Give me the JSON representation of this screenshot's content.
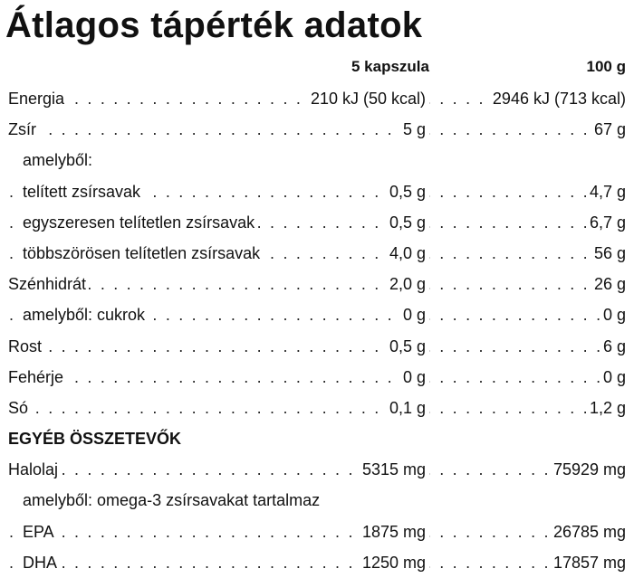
{
  "title": "Átlagos tápérték adatok",
  "columns": {
    "col1": "5 kapszula",
    "col2": "100 g"
  },
  "rows": [
    {
      "label": "Energia",
      "v1": "210 kJ (50 kcal)",
      "v2": "2946 kJ (713 kcal)",
      "indent": false,
      "dots": true
    },
    {
      "label": "Zsír",
      "v1": "5 g",
      "v2": "67 g",
      "indent": false,
      "dots": true
    },
    {
      "label": "amelyből:",
      "v1": "",
      "v2": "",
      "indent": true,
      "dots": false
    },
    {
      "label": "telített zsírsavak",
      "v1": "0,5 g",
      "v2": "4,7 g",
      "indent": true,
      "dots": true
    },
    {
      "label": "egyszeresen telítetlen zsírsavak",
      "v1": "0,5 g",
      "v2": "6,7 g",
      "indent": true,
      "dots": true
    },
    {
      "label": "többszörösen telítetlen zsírsavak",
      "v1": "4,0 g",
      "v2": "56 g",
      "indent": true,
      "dots": true
    },
    {
      "label": "Szénhidrát",
      "v1": "2,0 g",
      "v2": "26 g",
      "indent": false,
      "dots": true
    },
    {
      "label": "amelyből: cukrok",
      "v1": "0 g",
      "v2": "0 g",
      "indent": true,
      "dots": true
    },
    {
      "label": "Rost",
      "v1": "0,5 g",
      "v2": "6 g",
      "indent": false,
      "dots": true
    },
    {
      "label": "Fehérje",
      "v1": "0 g",
      "v2": "0 g",
      "indent": false,
      "dots": true
    },
    {
      "label": "Só",
      "v1": "0,1 g",
      "v2": "1,2 g",
      "indent": false,
      "dots": true
    },
    {
      "label": "EGYÉB ÖSSZETEVŐK",
      "v1": "",
      "v2": "",
      "indent": false,
      "dots": false,
      "section": true
    },
    {
      "label": "Halolaj",
      "v1": "5315 mg",
      "v2": "75929 mg",
      "indent": false,
      "dots": true
    },
    {
      "label": "amelyből: omega-3 zsírsavakat tartalmaz",
      "v1": "",
      "v2": "",
      "indent": true,
      "dots": false
    },
    {
      "label": "EPA",
      "v1": "1875 mg",
      "v2": "26785 mg",
      "indent": true,
      "dots": true
    },
    {
      "label": "DHA",
      "v1": "1250 mg",
      "v2": "17857 mg",
      "indent": true,
      "dots": true
    }
  ]
}
